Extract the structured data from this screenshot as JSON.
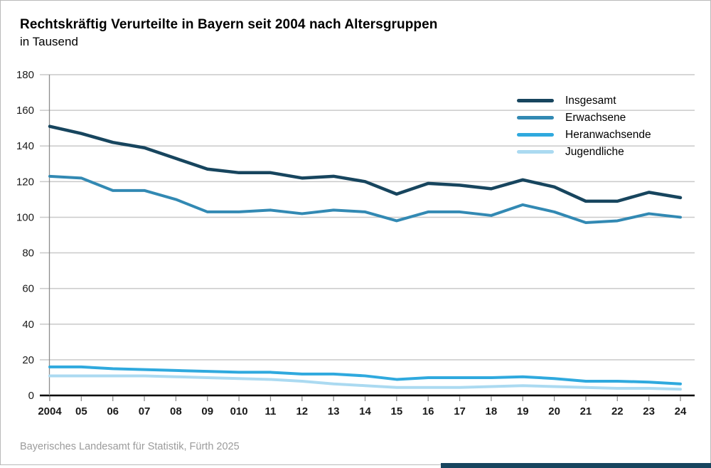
{
  "title": "Rechtskräftig Verurteilte in Bayern seit 2004 nach Altersgruppen",
  "subtitle": "in Tausend",
  "source": "Bayerisches Landesamt für Statistik, Fürth 2025",
  "colors": {
    "grid": "#c9c9c9",
    "axis_line": "#8c8c8c",
    "x_axis": "#000000",
    "tick_label": "#1a1a1a",
    "accent_bar": "#17455e",
    "source_text": "#9b9b9b"
  },
  "chart_data": {
    "type": "line",
    "title": "Rechtskräftig Verurteilte in Bayern seit 2004 nach Altersgruppen",
    "subtitle": "in Tausend",
    "xlabel": "",
    "ylabel": "",
    "ylim": [
      0,
      180
    ],
    "yticks": [
      0,
      20,
      40,
      60,
      80,
      100,
      120,
      140,
      160,
      180
    ],
    "grid": "horizontal",
    "legend_position": "top-right",
    "x_labels": [
      "2004",
      "05",
      "06",
      "07",
      "08",
      "09",
      "010",
      "11",
      "12",
      "13",
      "14",
      "15",
      "16",
      "17",
      "18",
      "19",
      "20",
      "21",
      "22",
      "23",
      "24"
    ],
    "series": [
      {
        "name": "Insgesamt",
        "color": "#17455e",
        "stroke_width": 4.5,
        "values": [
          151,
          147,
          142,
          139,
          133,
          127,
          125,
          125,
          122,
          123,
          120,
          113,
          119,
          118,
          116,
          121,
          117,
          109,
          109,
          114,
          111
        ]
      },
      {
        "name": "Erwachsene",
        "color": "#3289b3",
        "stroke_width": 4,
        "values": [
          123,
          122,
          115,
          115,
          110,
          103,
          103,
          104,
          102,
          104,
          103,
          98,
          103,
          103,
          101,
          107,
          103,
          97,
          98,
          102,
          100
        ]
      },
      {
        "name": "Heranwachsende",
        "color": "#2fa9de",
        "stroke_width": 4,
        "values": [
          16,
          16,
          15,
          14.5,
          14,
          13.5,
          13,
          13,
          12,
          12,
          11,
          9,
          10,
          10,
          10,
          10.5,
          9.5,
          8,
          8,
          7.5,
          6.5
        ]
      },
      {
        "name": "Jugendliche",
        "color": "#abdaf1",
        "stroke_width": 4,
        "values": [
          11,
          11,
          11,
          11,
          10.5,
          10,
          9.5,
          9,
          8,
          6.5,
          5.5,
          4.5,
          4.5,
          4.5,
          5,
          5.5,
          5,
          4.5,
          4,
          4,
          3.5
        ]
      }
    ]
  }
}
